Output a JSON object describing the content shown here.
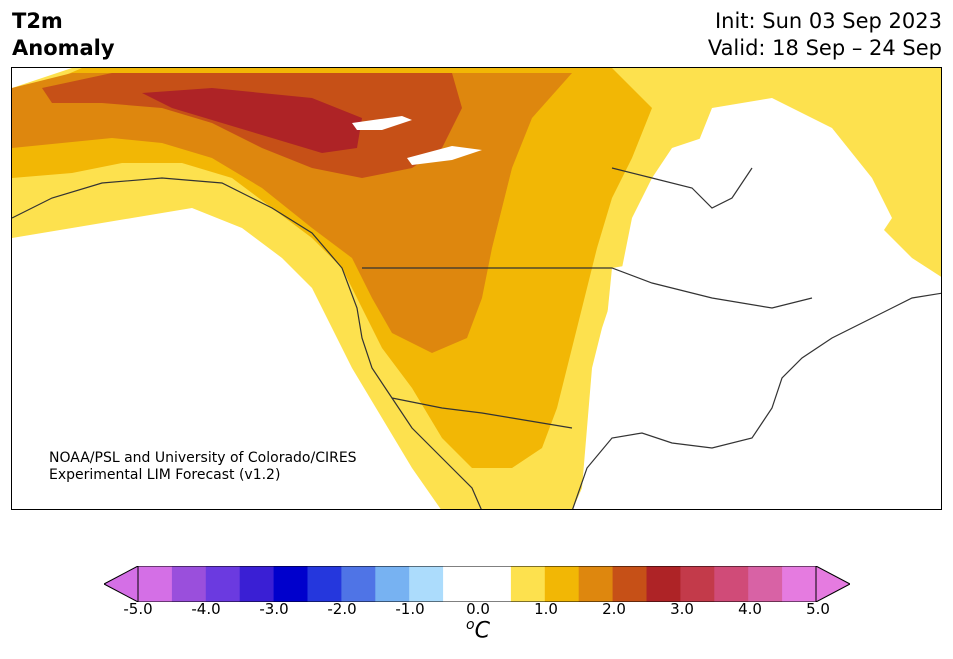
{
  "title": {
    "line1": "T2m",
    "line2": "Anomaly"
  },
  "dates": {
    "init": "Init: Sun 03 Sep 2023",
    "valid": "Valid: 18 Sep – 24 Sep"
  },
  "credit": {
    "line1": "NOAA/PSL and University of Colorado/CIRES",
    "line2": "Experimental LIM Forecast (v1.2)"
  },
  "colorbar": {
    "unit_sup": "o",
    "unit_main": "C",
    "ticks": [
      "-5.0",
      "-4.0",
      "-3.0",
      "-2.0",
      "-1.0",
      "0.0",
      "1.0",
      "2.0",
      "3.0",
      "4.0",
      "5.0"
    ],
    "colors": [
      "#d46fe6",
      "#9a4fdc",
      "#6b3ae0",
      "#3a1fd4",
      "#0000cc",
      "#2537dd",
      "#4f74e6",
      "#77b2f2",
      "#acdcfc",
      "#ffffff",
      "#ffffff",
      "#fde14e",
      "#f2b705",
      "#de870e",
      "#c65017",
      "#ae2326",
      "#c33a4a",
      "#d04b78",
      "#d862a5",
      "#e57be0"
    ]
  }
}
